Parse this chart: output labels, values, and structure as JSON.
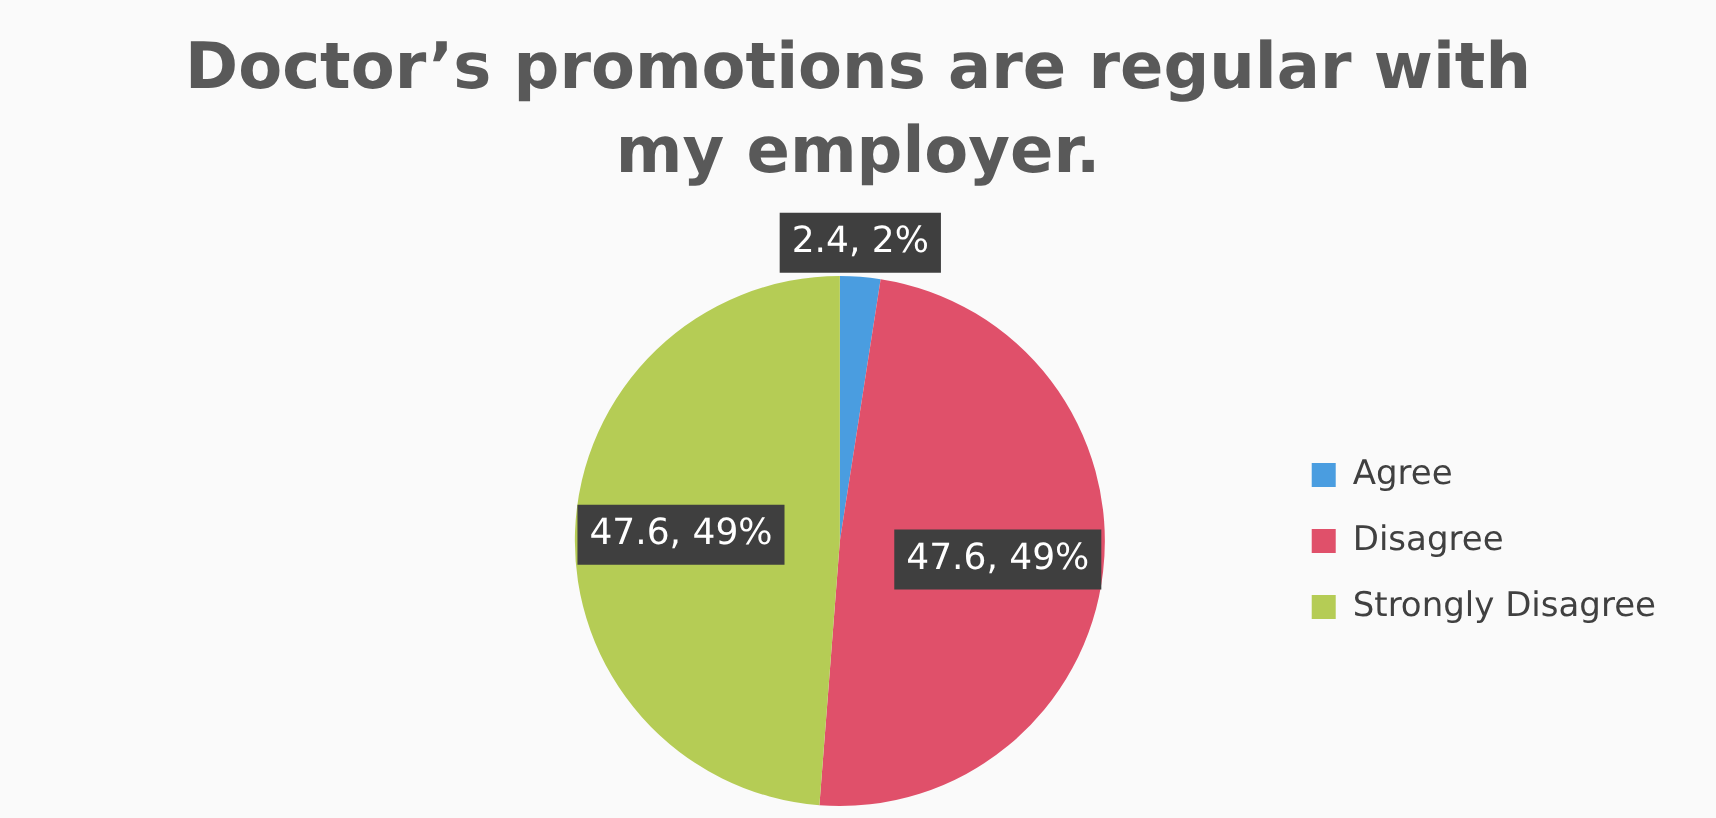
{
  "chart_data": {
    "type": "pie",
    "title": "Doctor’s promotions are regular with my employer.",
    "categories": [
      "Agree",
      "Disagree",
      "Strongly Disagree"
    ],
    "values": [
      2.4,
      47.6,
      47.6
    ],
    "colors": [
      "#4a9de0",
      "#e0506a",
      "#b5cc55"
    ],
    "value_labels": [
      "2.4, 2%",
      "47.6, 49%",
      "47.6, 49%"
    ],
    "legend": "right"
  }
}
